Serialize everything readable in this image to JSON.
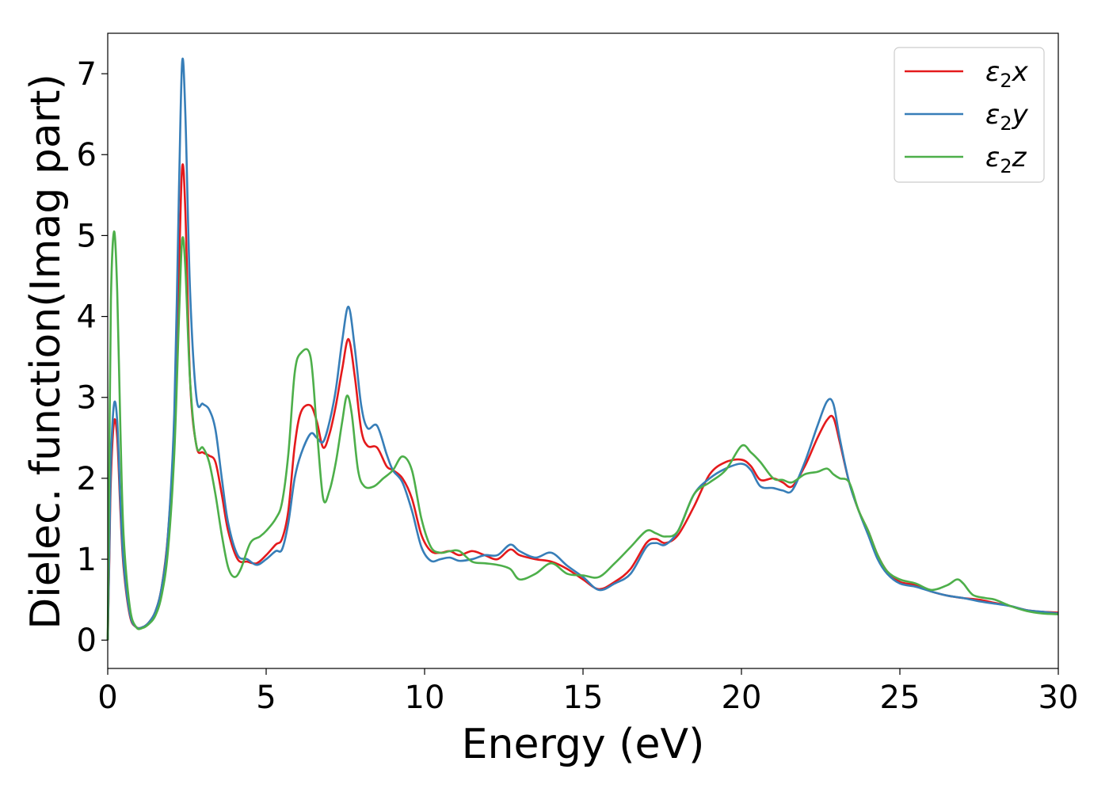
{
  "chart_data": {
    "type": "line",
    "title": "",
    "xlabel": "Energy (eV)",
    "ylabel": "Dielec. function(Imag part)",
    "xlim": [
      0,
      30
    ],
    "ylim": [
      -0.35,
      7.5
    ],
    "xticks": [
      0,
      5,
      10,
      15,
      20,
      25,
      30
    ],
    "yticks": [
      0,
      1,
      2,
      3,
      4,
      5,
      6,
      7
    ],
    "grid": false,
    "legend_position": "top-right",
    "series": [
      {
        "name": "ε₂x",
        "legend": {
          "base": "ε",
          "sub": "2",
          "suffix": "x"
        },
        "color": "#e41a1c",
        "points": [
          [
            0,
            0
          ],
          [
            0.05,
            1.0
          ],
          [
            0.1,
            2.0
          ],
          [
            0.2,
            2.7
          ],
          [
            0.3,
            2.5
          ],
          [
            0.4,
            1.6
          ],
          [
            0.5,
            0.9
          ],
          [
            0.7,
            0.3
          ],
          [
            0.9,
            0.16
          ],
          [
            1.1,
            0.16
          ],
          [
            1.3,
            0.22
          ],
          [
            1.5,
            0.35
          ],
          [
            1.7,
            0.65
          ],
          [
            1.9,
            1.3
          ],
          [
            2.1,
            2.6
          ],
          [
            2.25,
            4.6
          ],
          [
            2.35,
            5.85
          ],
          [
            2.45,
            5.3
          ],
          [
            2.6,
            3.2
          ],
          [
            2.8,
            2.4
          ],
          [
            3.0,
            2.32
          ],
          [
            3.2,
            2.28
          ],
          [
            3.4,
            2.2
          ],
          [
            3.6,
            1.8
          ],
          [
            3.8,
            1.35
          ],
          [
            4.1,
            1.0
          ],
          [
            4.4,
            0.97
          ],
          [
            4.7,
            0.95
          ],
          [
            5.0,
            1.05
          ],
          [
            5.3,
            1.18
          ],
          [
            5.5,
            1.25
          ],
          [
            5.7,
            1.6
          ],
          [
            5.9,
            2.4
          ],
          [
            6.1,
            2.82
          ],
          [
            6.4,
            2.9
          ],
          [
            6.6,
            2.7
          ],
          [
            6.8,
            2.38
          ],
          [
            7.0,
            2.55
          ],
          [
            7.2,
            2.9
          ],
          [
            7.4,
            3.35
          ],
          [
            7.6,
            3.72
          ],
          [
            7.8,
            3.25
          ],
          [
            8.0,
            2.6
          ],
          [
            8.2,
            2.4
          ],
          [
            8.5,
            2.38
          ],
          [
            8.8,
            2.15
          ],
          [
            9.0,
            2.1
          ],
          [
            9.3,
            2.0
          ],
          [
            9.6,
            1.75
          ],
          [
            9.9,
            1.3
          ],
          [
            10.2,
            1.1
          ],
          [
            10.5,
            1.08
          ],
          [
            10.8,
            1.1
          ],
          [
            11.1,
            1.05
          ],
          [
            11.5,
            1.1
          ],
          [
            11.9,
            1.05
          ],
          [
            12.3,
            1.0
          ],
          [
            12.7,
            1.12
          ],
          [
            13.0,
            1.05
          ],
          [
            13.5,
            1.0
          ],
          [
            14.0,
            0.97
          ],
          [
            14.5,
            0.88
          ],
          [
            15.0,
            0.75
          ],
          [
            15.5,
            0.63
          ],
          [
            16.0,
            0.72
          ],
          [
            16.5,
            0.88
          ],
          [
            17.0,
            1.2
          ],
          [
            17.3,
            1.25
          ],
          [
            17.6,
            1.2
          ],
          [
            18.0,
            1.3
          ],
          [
            18.5,
            1.65
          ],
          [
            19.0,
            2.05
          ],
          [
            19.5,
            2.2
          ],
          [
            20.0,
            2.23
          ],
          [
            20.3,
            2.15
          ],
          [
            20.6,
            1.98
          ],
          [
            21.0,
            2.0
          ],
          [
            21.3,
            1.95
          ],
          [
            21.6,
            1.9
          ],
          [
            22.0,
            2.15
          ],
          [
            22.4,
            2.5
          ],
          [
            22.7,
            2.72
          ],
          [
            22.9,
            2.75
          ],
          [
            23.1,
            2.45
          ],
          [
            23.4,
            1.95
          ],
          [
            23.7,
            1.6
          ],
          [
            24.0,
            1.35
          ],
          [
            24.3,
            1.05
          ],
          [
            24.6,
            0.85
          ],
          [
            25.0,
            0.72
          ],
          [
            25.5,
            0.68
          ],
          [
            26.0,
            0.6
          ],
          [
            26.5,
            0.55
          ],
          [
            27.0,
            0.52
          ],
          [
            27.5,
            0.5
          ],
          [
            28.0,
            0.46
          ],
          [
            28.5,
            0.42
          ],
          [
            29.0,
            0.37
          ],
          [
            29.5,
            0.35
          ],
          [
            30.0,
            0.34
          ]
        ]
      },
      {
        "name": "ε₂y",
        "legend": {
          "base": "ε",
          "sub": "2",
          "suffix": "y"
        },
        "color": "#377eb8",
        "points": [
          [
            0,
            0
          ],
          [
            0.05,
            1.1
          ],
          [
            0.1,
            2.2
          ],
          [
            0.2,
            2.92
          ],
          [
            0.3,
            2.7
          ],
          [
            0.4,
            1.7
          ],
          [
            0.5,
            0.95
          ],
          [
            0.7,
            0.32
          ],
          [
            0.9,
            0.16
          ],
          [
            1.1,
            0.16
          ],
          [
            1.3,
            0.22
          ],
          [
            1.5,
            0.35
          ],
          [
            1.7,
            0.65
          ],
          [
            1.9,
            1.3
          ],
          [
            2.1,
            2.8
          ],
          [
            2.25,
            5.6
          ],
          [
            2.35,
            7.15
          ],
          [
            2.45,
            6.5
          ],
          [
            2.6,
            4.3
          ],
          [
            2.8,
            3.0
          ],
          [
            3.0,
            2.92
          ],
          [
            3.2,
            2.85
          ],
          [
            3.4,
            2.6
          ],
          [
            3.6,
            2.0
          ],
          [
            3.8,
            1.45
          ],
          [
            4.1,
            1.05
          ],
          [
            4.4,
            1.0
          ],
          [
            4.7,
            0.93
          ],
          [
            5.0,
            1.0
          ],
          [
            5.3,
            1.1
          ],
          [
            5.5,
            1.12
          ],
          [
            5.7,
            1.45
          ],
          [
            5.9,
            2.0
          ],
          [
            6.1,
            2.3
          ],
          [
            6.4,
            2.55
          ],
          [
            6.6,
            2.5
          ],
          [
            6.8,
            2.45
          ],
          [
            7.0,
            2.7
          ],
          [
            7.2,
            3.1
          ],
          [
            7.4,
            3.7
          ],
          [
            7.6,
            4.12
          ],
          [
            7.8,
            3.6
          ],
          [
            8.0,
            2.9
          ],
          [
            8.2,
            2.62
          ],
          [
            8.5,
            2.65
          ],
          [
            8.8,
            2.3
          ],
          [
            9.0,
            2.1
          ],
          [
            9.3,
            1.95
          ],
          [
            9.6,
            1.6
          ],
          [
            9.9,
            1.15
          ],
          [
            10.2,
            0.98
          ],
          [
            10.5,
            1.0
          ],
          [
            10.8,
            1.02
          ],
          [
            11.1,
            0.98
          ],
          [
            11.5,
            1.0
          ],
          [
            11.9,
            1.05
          ],
          [
            12.3,
            1.05
          ],
          [
            12.7,
            1.18
          ],
          [
            13.0,
            1.1
          ],
          [
            13.5,
            1.02
          ],
          [
            14.0,
            1.08
          ],
          [
            14.5,
            0.92
          ],
          [
            15.0,
            0.78
          ],
          [
            15.5,
            0.62
          ],
          [
            16.0,
            0.7
          ],
          [
            16.5,
            0.82
          ],
          [
            17.0,
            1.15
          ],
          [
            17.3,
            1.2
          ],
          [
            17.6,
            1.18
          ],
          [
            18.0,
            1.35
          ],
          [
            18.5,
            1.8
          ],
          [
            19.0,
            2.0
          ],
          [
            19.5,
            2.12
          ],
          [
            20.0,
            2.18
          ],
          [
            20.3,
            2.1
          ],
          [
            20.6,
            1.9
          ],
          [
            21.0,
            1.88
          ],
          [
            21.3,
            1.85
          ],
          [
            21.6,
            1.85
          ],
          [
            22.0,
            2.2
          ],
          [
            22.4,
            2.65
          ],
          [
            22.7,
            2.95
          ],
          [
            22.9,
            2.92
          ],
          [
            23.1,
            2.5
          ],
          [
            23.4,
            1.95
          ],
          [
            23.7,
            1.6
          ],
          [
            24.0,
            1.3
          ],
          [
            24.3,
            1.0
          ],
          [
            24.6,
            0.82
          ],
          [
            25.0,
            0.7
          ],
          [
            25.5,
            0.66
          ],
          [
            26.0,
            0.6
          ],
          [
            26.5,
            0.55
          ],
          [
            27.0,
            0.52
          ],
          [
            27.5,
            0.48
          ],
          [
            28.0,
            0.45
          ],
          [
            28.5,
            0.42
          ],
          [
            29.0,
            0.37
          ],
          [
            29.5,
            0.35
          ],
          [
            30.0,
            0.33
          ]
        ]
      },
      {
        "name": "ε₂z",
        "legend": {
          "base": "ε",
          "sub": "2",
          "suffix": "z"
        },
        "color": "#4daf4a",
        "points": [
          [
            0,
            0
          ],
          [
            0.05,
            2.2
          ],
          [
            0.1,
            4.2
          ],
          [
            0.2,
            5.05
          ],
          [
            0.3,
            4.3
          ],
          [
            0.4,
            2.6
          ],
          [
            0.5,
            1.3
          ],
          [
            0.7,
            0.4
          ],
          [
            0.9,
            0.16
          ],
          [
            1.1,
            0.15
          ],
          [
            1.3,
            0.2
          ],
          [
            1.5,
            0.3
          ],
          [
            1.7,
            0.55
          ],
          [
            1.9,
            1.1
          ],
          [
            2.1,
            2.3
          ],
          [
            2.25,
            4.0
          ],
          [
            2.35,
            4.95
          ],
          [
            2.45,
            4.6
          ],
          [
            2.6,
            3.2
          ],
          [
            2.8,
            2.4
          ],
          [
            3.0,
            2.38
          ],
          [
            3.2,
            2.2
          ],
          [
            3.4,
            1.8
          ],
          [
            3.6,
            1.3
          ],
          [
            3.8,
            0.9
          ],
          [
            4.0,
            0.78
          ],
          [
            4.2,
            0.88
          ],
          [
            4.5,
            1.2
          ],
          [
            4.8,
            1.28
          ],
          [
            5.0,
            1.35
          ],
          [
            5.3,
            1.5
          ],
          [
            5.5,
            1.7
          ],
          [
            5.7,
            2.3
          ],
          [
            5.9,
            3.3
          ],
          [
            6.1,
            3.55
          ],
          [
            6.4,
            3.5
          ],
          [
            6.6,
            2.6
          ],
          [
            6.8,
            1.75
          ],
          [
            7.0,
            1.85
          ],
          [
            7.2,
            2.2
          ],
          [
            7.4,
            2.7
          ],
          [
            7.55,
            3.02
          ],
          [
            7.7,
            2.8
          ],
          [
            7.9,
            2.1
          ],
          [
            8.1,
            1.9
          ],
          [
            8.4,
            1.9
          ],
          [
            8.7,
            2.0
          ],
          [
            9.0,
            2.1
          ],
          [
            9.3,
            2.27
          ],
          [
            9.6,
            2.1
          ],
          [
            9.9,
            1.5
          ],
          [
            10.2,
            1.15
          ],
          [
            10.5,
            1.08
          ],
          [
            10.8,
            1.1
          ],
          [
            11.1,
            1.1
          ],
          [
            11.5,
            0.97
          ],
          [
            11.9,
            0.95
          ],
          [
            12.3,
            0.93
          ],
          [
            12.7,
            0.88
          ],
          [
            13.0,
            0.75
          ],
          [
            13.5,
            0.82
          ],
          [
            14.0,
            0.95
          ],
          [
            14.5,
            0.82
          ],
          [
            15.0,
            0.8
          ],
          [
            15.5,
            0.78
          ],
          [
            16.0,
            0.95
          ],
          [
            16.5,
            1.15
          ],
          [
            17.0,
            1.35
          ],
          [
            17.3,
            1.32
          ],
          [
            17.6,
            1.28
          ],
          [
            18.0,
            1.35
          ],
          [
            18.5,
            1.8
          ],
          [
            19.0,
            1.95
          ],
          [
            19.5,
            2.1
          ],
          [
            20.0,
            2.4
          ],
          [
            20.3,
            2.32
          ],
          [
            20.6,
            2.2
          ],
          [
            21.0,
            2.0
          ],
          [
            21.3,
            1.98
          ],
          [
            21.6,
            1.95
          ],
          [
            22.0,
            2.05
          ],
          [
            22.4,
            2.08
          ],
          [
            22.7,
            2.12
          ],
          [
            22.9,
            2.05
          ],
          [
            23.1,
            2.0
          ],
          [
            23.4,
            1.95
          ],
          [
            23.7,
            1.6
          ],
          [
            24.0,
            1.35
          ],
          [
            24.3,
            1.05
          ],
          [
            24.6,
            0.85
          ],
          [
            25.0,
            0.75
          ],
          [
            25.5,
            0.7
          ],
          [
            26.0,
            0.62
          ],
          [
            26.5,
            0.68
          ],
          [
            26.8,
            0.75
          ],
          [
            27.0,
            0.7
          ],
          [
            27.3,
            0.56
          ],
          [
            27.7,
            0.52
          ],
          [
            28.0,
            0.5
          ],
          [
            28.5,
            0.42
          ],
          [
            29.0,
            0.36
          ],
          [
            29.5,
            0.33
          ],
          [
            30.0,
            0.32
          ]
        ]
      }
    ]
  }
}
